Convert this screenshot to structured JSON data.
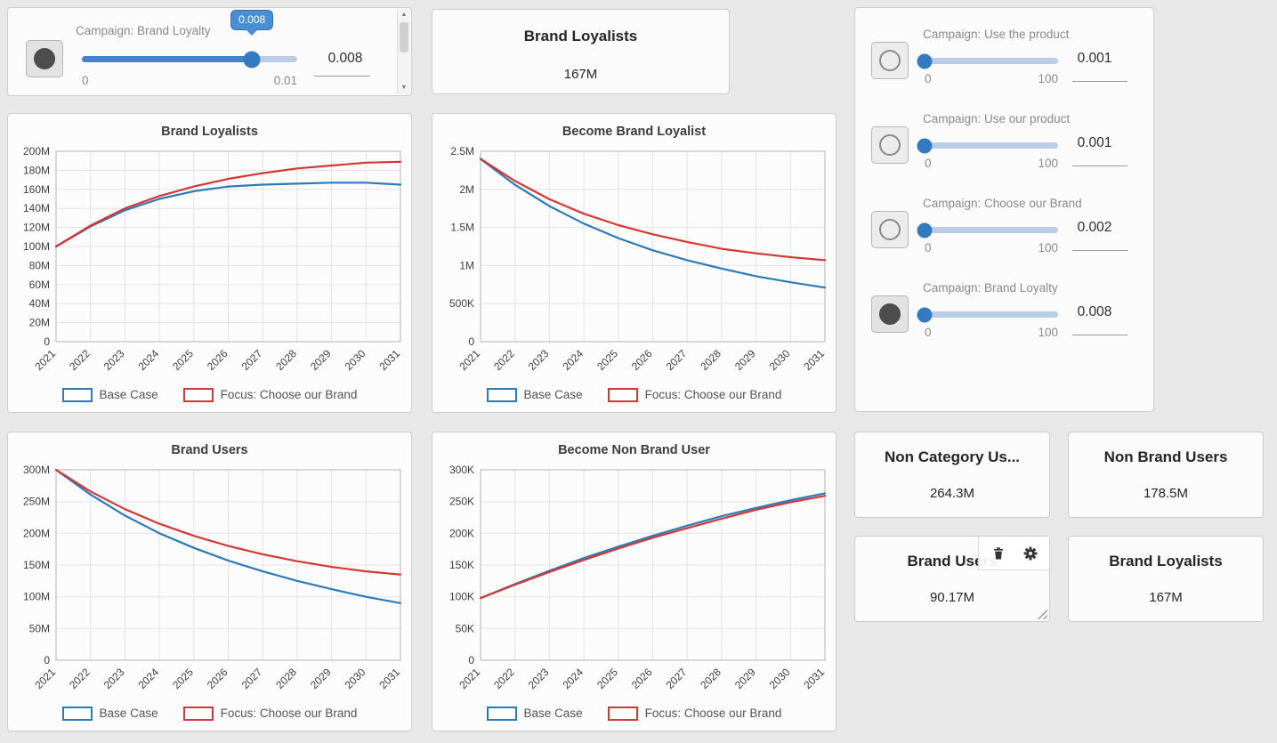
{
  "top_slider": {
    "label": "Campaign: Brand Loyalty",
    "tooltip": "0.008",
    "value": "0.008",
    "min_label": "0",
    "max_label": "0.01",
    "percent": 79,
    "selected": true
  },
  "top_value": {
    "title": "Brand Loyalists",
    "value": "167M"
  },
  "right_sliders": [
    {
      "label": "Campaign: Use the product",
      "value": "0.001",
      "min_label": "0",
      "max_label": "100",
      "percent": 0,
      "selected": false
    },
    {
      "label": "Campaign: Use our product",
      "value": "0.001",
      "min_label": "0",
      "max_label": "100",
      "percent": 0,
      "selected": false
    },
    {
      "label": "Campaign: Choose our Brand",
      "value": "0.002",
      "min_label": "0",
      "max_label": "100",
      "percent": 0,
      "selected": false
    },
    {
      "label": "Campaign: Brand Loyalty",
      "value": "0.008",
      "min_label": "0",
      "max_label": "100",
      "percent": 0,
      "selected": true
    }
  ],
  "value_panels": [
    {
      "title": "Non Category Us...",
      "value": "264.3M"
    },
    {
      "title": "Non Brand Users",
      "value": "178.5M"
    },
    {
      "title": "Brand Users",
      "value": "90.17M"
    },
    {
      "title": "Brand Loyalists",
      "value": "167M"
    }
  ],
  "colors": {
    "base_case": "#2d7ab9",
    "focus": "#d53734",
    "slider_fill": "#3d85c8",
    "slider_track": "#b9cee6",
    "tooltip_bg": "#4a8fd3"
  },
  "chart_data": [
    {
      "type": "line",
      "title": "Brand Loyalists",
      "x": [
        2021,
        2022,
        2023,
        2024,
        2025,
        2026,
        2027,
        2028,
        2029,
        2030,
        2031
      ],
      "ylim": [
        0,
        200
      ],
      "y_unit": "M",
      "grid": true,
      "legend_position": "bottom",
      "yticks": [
        {
          "v": 0,
          "label": "0"
        },
        {
          "v": 20,
          "label": "20M"
        },
        {
          "v": 40,
          "label": "40M"
        },
        {
          "v": 60,
          "label": "60M"
        },
        {
          "v": 80,
          "label": "80M"
        },
        {
          "v": 100,
          "label": "100M"
        },
        {
          "v": 120,
          "label": "120M"
        },
        {
          "v": 140,
          "label": "140M"
        },
        {
          "v": 160,
          "label": "160M"
        },
        {
          "v": 180,
          "label": "180M"
        },
        {
          "v": 200,
          "label": "200M"
        }
      ],
      "series": [
        {
          "name": "Base Case",
          "color": "#2d7ab9",
          "values": [
            100,
            121,
            138,
            150,
            158,
            163,
            165,
            166,
            167,
            167,
            165
          ]
        },
        {
          "name": "Focus: Choose our Brand",
          "color": "#d53734",
          "values": [
            100,
            122,
            140,
            153,
            163,
            171,
            177,
            182,
            185,
            188,
            189
          ]
        }
      ]
    },
    {
      "type": "line",
      "title": "Become Brand Loyalist",
      "x": [
        2021,
        2022,
        2023,
        2024,
        2025,
        2026,
        2027,
        2028,
        2029,
        2030,
        2031
      ],
      "ylim": [
        0,
        2.5
      ],
      "y_unit": "M",
      "grid": true,
      "legend_position": "bottom",
      "yticks": [
        {
          "v": 0,
          "label": "0"
        },
        {
          "v": 0.5,
          "label": "500K"
        },
        {
          "v": 1,
          "label": "1M"
        },
        {
          "v": 1.5,
          "label": "1.5M"
        },
        {
          "v": 2,
          "label": "2M"
        },
        {
          "v": 2.5,
          "label": "2.5M"
        }
      ],
      "series": [
        {
          "name": "Base Case",
          "color": "#2d7ab9",
          "values": [
            2.4,
            2.06,
            1.78,
            1.55,
            1.36,
            1.2,
            1.07,
            0.96,
            0.86,
            0.78,
            0.71
          ]
        },
        {
          "name": "Focus: Choose our Brand",
          "color": "#d53734",
          "values": [
            2.4,
            2.11,
            1.87,
            1.68,
            1.53,
            1.41,
            1.31,
            1.22,
            1.16,
            1.11,
            1.07
          ]
        }
      ]
    },
    {
      "type": "line",
      "title": "Brand Users",
      "x": [
        2021,
        2022,
        2023,
        2024,
        2025,
        2026,
        2027,
        2028,
        2029,
        2030,
        2031
      ],
      "ylim": [
        0,
        300
      ],
      "y_unit": "M",
      "grid": true,
      "legend_position": "bottom",
      "yticks": [
        {
          "v": 0,
          "label": "0"
        },
        {
          "v": 50,
          "label": "50M"
        },
        {
          "v": 100,
          "label": "100M"
        },
        {
          "v": 150,
          "label": "150M"
        },
        {
          "v": 200,
          "label": "200M"
        },
        {
          "v": 250,
          "label": "250M"
        },
        {
          "v": 300,
          "label": "300M"
        }
      ],
      "series": [
        {
          "name": "Base Case",
          "color": "#2d7ab9",
          "values": [
            300,
            261,
            228,
            200,
            177,
            157,
            140,
            125,
            112,
            100,
            90
          ]
        },
        {
          "name": "Focus: Choose our Brand",
          "color": "#d53734",
          "values": [
            300,
            266,
            238,
            215,
            196,
            180,
            167,
            156,
            147,
            140,
            135
          ]
        }
      ]
    },
    {
      "type": "line",
      "title": "Become Non Brand User",
      "x": [
        2021,
        2022,
        2023,
        2024,
        2025,
        2026,
        2027,
        2028,
        2029,
        2030,
        2031
      ],
      "ylim": [
        0,
        300
      ],
      "y_unit": "K",
      "grid": true,
      "legend_position": "bottom",
      "yticks": [
        {
          "v": 0,
          "label": "0"
        },
        {
          "v": 50,
          "label": "50K"
        },
        {
          "v": 100,
          "label": "100K"
        },
        {
          "v": 150,
          "label": "150K"
        },
        {
          "v": 200,
          "label": "200K"
        },
        {
          "v": 250,
          "label": "250K"
        },
        {
          "v": 300,
          "label": "300K"
        }
      ],
      "series": [
        {
          "name": "Base Case",
          "color": "#2d7ab9",
          "values": [
            98,
            120,
            141,
            161,
            179,
            196,
            212,
            227,
            240,
            252,
            263
          ]
        },
        {
          "name": "Focus: Choose our Brand",
          "color": "#d53734",
          "values": [
            98,
            119,
            139,
            158,
            176,
            193,
            208,
            223,
            237,
            249,
            259
          ]
        }
      ]
    }
  ]
}
